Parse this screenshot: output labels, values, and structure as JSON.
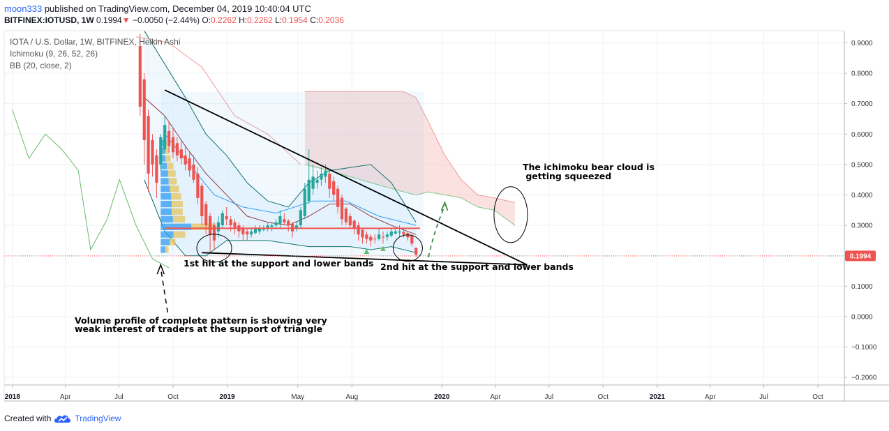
{
  "header": {
    "user": "moon333",
    "published_text": " published on TradingView.com, December 04, 2019 10:40:04 UTC",
    "symbol": "BITFINEX:IOTUSD, 1W",
    "last_price": "0.1994",
    "change": "−0.0050 (−2.44%)",
    "o_label": "O:",
    "o_value": "0.2262",
    "h_label": "H:",
    "h_value": "0.2262",
    "l_label": "L:",
    "l_value": "0.1954",
    "c_label": "C:",
    "c_value": "0.2036"
  },
  "legend": {
    "line1": "IOTA / U.S. Dollar, 1W, BITFINEX, Heikin Ashi",
    "line2": "Ichimoku (9, 26, 52, 26)",
    "line3": "BB (20, close, 2)"
  },
  "annotations": {
    "first_hit": "1st hit at the support and lower bands",
    "second_hit": "2nd hit at the support and lower bands",
    "cloud_line1": "The ichimoku bear cloud is",
    "cloud_line2": " getting squeezed",
    "volume_line1": "Volume profile of complete pattern is showing very",
    "volume_line2": "weak interest of traders at the support of triangle"
  },
  "footer": {
    "created_with": "Created with",
    "brand": "TradingView"
  },
  "colors": {
    "up": "#26a69a",
    "down": "#ef5350",
    "price_line": "#ef5350",
    "bb": "#2196f3",
    "cloud_bear": "#f7c9c7",
    "tradingview_blue": "#2962ff"
  },
  "chart_data": {
    "type": "candlestick",
    "title": "IOTA / U.S. Dollar, 1W, BITFINEX, Heikin Ashi",
    "indicators": [
      "Ichimoku (9, 26, 52, 26)",
      "BB (20, close, 2)"
    ],
    "y_ticks": [
      "0.9000",
      "0.8000",
      "0.7000",
      "0.6000",
      "0.5000",
      "0.4000",
      "0.3000",
      "0.2000",
      "0.1000",
      "0.0000",
      "−0.1000",
      "−0.2000"
    ],
    "y_tick_values": [
      0.9,
      0.8,
      0.7,
      0.6,
      0.5,
      0.4,
      0.3,
      0.2,
      0.1,
      0.0,
      -0.1,
      -0.2
    ],
    "ylim": [
      -0.225,
      0.94
    ],
    "x_ticks": [
      "2018",
      "Apr",
      "Jul",
      "Oct",
      "2019",
      "May",
      "Aug",
      "2020",
      "Apr",
      "Jul",
      "Oct",
      "2021",
      "Apr",
      "Jul",
      "Oct"
    ],
    "x_tick_dates": [
      "2018-01-01",
      "2018-04-01",
      "2018-07-01",
      "2018-10-01",
      "2019-01-01",
      "2019-05-01",
      "2019-08-01",
      "2020-01-01",
      "2020-04-01",
      "2020-07-01",
      "2020-10-01",
      "2021-01-01",
      "2021-04-01",
      "2021-07-01",
      "2021-10-01"
    ],
    "bold_x_ticks": [
      "2018",
      "2019",
      "2020",
      "2021"
    ],
    "last_price_label": "0.1994",
    "last_price": 0.1994,
    "resistance_level": 0.29,
    "triangle": {
      "upper_start": {
        "date": "2018-09-17",
        "price": 0.745
      },
      "lower_start": {
        "date": "2018-11-19",
        "price": 0.21
      },
      "apex": {
        "date": "2020-05-25",
        "price": 0.17
      }
    },
    "candles": [
      {
        "date": "2018-08-06",
        "o": 0.89,
        "h": 0.93,
        "c": 0.69,
        "l": 0.66
      },
      {
        "date": "2018-08-13",
        "o": 0.78,
        "h": 0.8,
        "c": 0.58,
        "l": 0.5
      },
      {
        "date": "2018-08-20",
        "o": 0.66,
        "h": 0.68,
        "c": 0.47,
        "l": 0.41
      },
      {
        "date": "2018-08-27",
        "o": 0.58,
        "h": 0.6,
        "c": 0.5,
        "l": 0.46
      },
      {
        "date": "2018-09-03",
        "o": 0.53,
        "h": 0.55,
        "c": 0.44,
        "l": 0.39
      },
      {
        "date": "2018-09-10",
        "o": 0.5,
        "h": 0.6,
        "c": 0.59,
        "l": 0.48
      },
      {
        "date": "2018-09-17",
        "o": 0.55,
        "h": 0.66,
        "c": 0.63,
        "l": 0.54
      },
      {
        "date": "2018-09-24",
        "o": 0.61,
        "h": 0.64,
        "c": 0.56,
        "l": 0.54
      },
      {
        "date": "2018-10-01",
        "o": 0.59,
        "h": 0.62,
        "c": 0.54,
        "l": 0.52
      },
      {
        "date": "2018-10-08",
        "o": 0.57,
        "h": 0.59,
        "c": 0.53,
        "l": 0.51
      },
      {
        "date": "2018-10-15",
        "o": 0.55,
        "h": 0.58,
        "c": 0.52,
        "l": 0.5
      },
      {
        "date": "2018-10-22",
        "o": 0.53,
        "h": 0.56,
        "c": 0.5,
        "l": 0.48
      },
      {
        "date": "2018-10-29",
        "o": 0.52,
        "h": 0.54,
        "c": 0.48,
        "l": 0.46
      },
      {
        "date": "2018-11-05",
        "o": 0.5,
        "h": 0.53,
        "c": 0.45,
        "l": 0.44
      },
      {
        "date": "2018-11-12",
        "o": 0.47,
        "h": 0.49,
        "c": 0.39,
        "l": 0.37
      },
      {
        "date": "2018-11-19",
        "o": 0.43,
        "h": 0.44,
        "c": 0.33,
        "l": 0.3
      },
      {
        "date": "2018-11-26",
        "o": 0.37,
        "h": 0.38,
        "c": 0.3,
        "l": 0.27
      },
      {
        "date": "2018-12-03",
        "o": 0.33,
        "h": 0.34,
        "c": 0.27,
        "l": 0.21
      },
      {
        "date": "2018-12-10",
        "o": 0.3,
        "h": 0.31,
        "c": 0.25,
        "l": 0.22
      },
      {
        "date": "2018-12-17",
        "o": 0.28,
        "h": 0.33,
        "c": 0.31,
        "l": 0.26
      },
      {
        "date": "2018-12-24",
        "o": 0.3,
        "h": 0.35,
        "c": 0.34,
        "l": 0.29
      },
      {
        "date": "2018-12-31",
        "o": 0.33,
        "h": 0.36,
        "c": 0.32,
        "l": 0.3
      },
      {
        "date": "2019-01-07",
        "o": 0.32,
        "h": 0.33,
        "c": 0.3,
        "l": 0.28
      },
      {
        "date": "2019-01-14",
        "o": 0.31,
        "h": 0.32,
        "c": 0.29,
        "l": 0.27
      },
      {
        "date": "2019-01-21",
        "o": 0.3,
        "h": 0.31,
        "c": 0.28,
        "l": 0.26
      },
      {
        "date": "2019-01-28",
        "o": 0.29,
        "h": 0.3,
        "c": 0.27,
        "l": 0.25
      },
      {
        "date": "2019-02-04",
        "o": 0.28,
        "h": 0.29,
        "c": 0.27,
        "l": 0.25
      },
      {
        "date": "2019-02-11",
        "o": 0.27,
        "h": 0.29,
        "c": 0.28,
        "l": 0.26
      },
      {
        "date": "2019-02-18",
        "o": 0.275,
        "h": 0.3,
        "c": 0.29,
        "l": 0.27
      },
      {
        "date": "2019-02-25",
        "o": 0.28,
        "h": 0.3,
        "c": 0.29,
        "l": 0.27
      },
      {
        "date": "2019-03-04",
        "o": 0.285,
        "h": 0.3,
        "c": 0.29,
        "l": 0.28
      },
      {
        "date": "2019-03-11",
        "o": 0.29,
        "h": 0.31,
        "c": 0.3,
        "l": 0.28
      },
      {
        "date": "2019-03-18",
        "o": 0.295,
        "h": 0.31,
        "c": 0.3,
        "l": 0.28
      },
      {
        "date": "2019-03-25",
        "o": 0.3,
        "h": 0.32,
        "c": 0.31,
        "l": 0.29
      },
      {
        "date": "2019-04-01",
        "o": 0.305,
        "h": 0.35,
        "c": 0.33,
        "l": 0.29
      },
      {
        "date": "2019-04-08",
        "o": 0.32,
        "h": 0.34,
        "c": 0.31,
        "l": 0.3
      },
      {
        "date": "2019-04-15",
        "o": 0.315,
        "h": 0.32,
        "c": 0.3,
        "l": 0.28
      },
      {
        "date": "2019-04-22",
        "o": 0.305,
        "h": 0.31,
        "c": 0.28,
        "l": 0.26
      },
      {
        "date": "2019-04-29",
        "o": 0.29,
        "h": 0.31,
        "c": 0.3,
        "l": 0.28
      },
      {
        "date": "2019-05-06",
        "o": 0.3,
        "h": 0.36,
        "c": 0.35,
        "l": 0.29
      },
      {
        "date": "2019-05-13",
        "o": 0.33,
        "h": 0.44,
        "c": 0.42,
        "l": 0.32
      },
      {
        "date": "2019-05-20",
        "o": 0.38,
        "h": 0.55,
        "c": 0.45,
        "l": 0.37
      },
      {
        "date": "2019-05-27",
        "o": 0.42,
        "h": 0.5,
        "c": 0.46,
        "l": 0.4
      },
      {
        "date": "2019-06-03",
        "o": 0.44,
        "h": 0.48,
        "c": 0.45,
        "l": 0.42
      },
      {
        "date": "2019-06-10",
        "o": 0.45,
        "h": 0.49,
        "c": 0.47,
        "l": 0.43
      },
      {
        "date": "2019-06-17",
        "o": 0.46,
        "h": 0.5,
        "c": 0.48,
        "l": 0.44
      },
      {
        "date": "2019-06-24",
        "o": 0.47,
        "h": 0.48,
        "c": 0.42,
        "l": 0.39
      },
      {
        "date": "2019-07-01",
        "o": 0.445,
        "h": 0.46,
        "c": 0.4,
        "l": 0.38
      },
      {
        "date": "2019-07-08",
        "o": 0.42,
        "h": 0.43,
        "c": 0.36,
        "l": 0.34
      },
      {
        "date": "2019-07-15",
        "o": 0.39,
        "h": 0.4,
        "c": 0.32,
        "l": 0.3
      },
      {
        "date": "2019-07-22",
        "o": 0.355,
        "h": 0.36,
        "c": 0.31,
        "l": 0.3
      },
      {
        "date": "2019-07-29",
        "o": 0.33,
        "h": 0.34,
        "c": 0.3,
        "l": 0.29
      },
      {
        "date": "2019-08-05",
        "o": 0.315,
        "h": 0.32,
        "c": 0.29,
        "l": 0.27
      },
      {
        "date": "2019-08-12",
        "o": 0.3,
        "h": 0.31,
        "c": 0.27,
        "l": 0.25
      },
      {
        "date": "2019-08-19",
        "o": 0.285,
        "h": 0.29,
        "c": 0.26,
        "l": 0.24
      },
      {
        "date": "2019-08-26",
        "o": 0.27,
        "h": 0.28,
        "c": 0.255,
        "l": 0.24
      },
      {
        "date": "2019-09-02",
        "o": 0.262,
        "h": 0.27,
        "c": 0.25,
        "l": 0.23
      },
      {
        "date": "2019-09-09",
        "o": 0.256,
        "h": 0.27,
        "c": 0.255,
        "l": 0.24
      },
      {
        "date": "2019-09-16",
        "o": 0.255,
        "h": 0.29,
        "c": 0.27,
        "l": 0.25
      },
      {
        "date": "2019-09-23",
        "o": 0.262,
        "h": 0.28,
        "c": 0.26,
        "l": 0.24
      },
      {
        "date": "2019-09-30",
        "o": 0.262,
        "h": 0.28,
        "c": 0.27,
        "l": 0.25
      },
      {
        "date": "2019-10-07",
        "o": 0.266,
        "h": 0.29,
        "c": 0.28,
        "l": 0.26
      },
      {
        "date": "2019-10-14",
        "o": 0.273,
        "h": 0.29,
        "c": 0.28,
        "l": 0.27
      },
      {
        "date": "2019-10-21",
        "o": 0.276,
        "h": 0.3,
        "c": 0.28,
        "l": 0.26
      },
      {
        "date": "2019-10-28",
        "o": 0.278,
        "h": 0.29,
        "c": 0.27,
        "l": 0.26
      },
      {
        "date": "2019-11-04",
        "o": 0.274,
        "h": 0.28,
        "c": 0.26,
        "l": 0.25
      },
      {
        "date": "2019-11-11",
        "o": 0.267,
        "h": 0.27,
        "c": 0.24,
        "l": 0.23
      },
      {
        "date": "2019-11-18",
        "o": 0.2262,
        "h": 0.2262,
        "c": 0.2036,
        "l": 0.1954
      }
    ],
    "volume_profile": {
      "up_color": "#2196f3",
      "down_color": "#f0c44a",
      "rows": [
        {
          "price": 0.57,
          "up": 0.1,
          "down": 0.12
        },
        {
          "price": 0.545,
          "up": 0.14,
          "down": 0.18
        },
        {
          "price": 0.52,
          "up": 0.16,
          "down": 0.2
        },
        {
          "price": 0.495,
          "up": 0.2,
          "down": 0.26
        },
        {
          "price": 0.47,
          "up": 0.24,
          "down": 0.3
        },
        {
          "price": 0.445,
          "up": 0.26,
          "down": 0.32
        },
        {
          "price": 0.42,
          "up": 0.3,
          "down": 0.36
        },
        {
          "price": 0.395,
          "up": 0.34,
          "down": 0.4
        },
        {
          "price": 0.37,
          "up": 0.36,
          "down": 0.44
        },
        {
          "price": 0.345,
          "up": 0.36,
          "down": 0.44
        },
        {
          "price": 0.32,
          "up": 0.4,
          "down": 0.48
        },
        {
          "price": 0.295,
          "up": 1.0,
          "down": 0.95
        },
        {
          "price": 0.27,
          "up": 0.42,
          "down": 0.46
        },
        {
          "price": 0.245,
          "up": 0.3,
          "down": 0.22
        },
        {
          "price": 0.22,
          "up": 0.16,
          "down": 0.12
        }
      ]
    },
    "ichimoku_cloud": [
      {
        "date": "2019-05-13",
        "top": 0.74,
        "bottom": 0.5
      },
      {
        "date": "2019-06-24",
        "top": 0.74,
        "bottom": 0.48
      },
      {
        "date": "2019-09-02",
        "top": 0.74,
        "bottom": 0.44
      },
      {
        "date": "2019-10-28",
        "top": 0.74,
        "bottom": 0.41
      },
      {
        "date": "2019-11-18",
        "top": 0.72,
        "bottom": 0.4
      },
      {
        "date": "2019-12-09",
        "top": 0.64,
        "bottom": 0.41
      },
      {
        "date": "2020-01-06",
        "top": 0.53,
        "bottom": 0.4
      },
      {
        "date": "2020-02-03",
        "top": 0.45,
        "bottom": 0.39
      },
      {
        "date": "2020-03-02",
        "top": 0.4,
        "bottom": 0.36
      },
      {
        "date": "2020-03-30",
        "top": 0.39,
        "bottom": 0.35
      },
      {
        "date": "2020-05-04",
        "top": 0.375,
        "bottom": 0.3
      }
    ],
    "ichimoku_lines": {
      "lagging_span": [
        {
          "date": "2018-01-01",
          "v": 0.68
        },
        {
          "date": "2018-01-29",
          "v": 0.52
        },
        {
          "date": "2018-02-26",
          "v": 0.6
        },
        {
          "date": "2018-03-26",
          "v": 0.55
        },
        {
          "date": "2018-04-23",
          "v": 0.48
        },
        {
          "date": "2018-05-14",
          "v": 0.22
        },
        {
          "date": "2018-06-11",
          "v": 0.32
        },
        {
          "date": "2018-07-02",
          "v": 0.45
        },
        {
          "date": "2018-07-30",
          "v": 0.3
        },
        {
          "date": "2018-08-27",
          "v": 0.19
        },
        {
          "date": "2018-09-24",
          "v": 0.16
        }
      ],
      "cloud_upper_hist": [
        {
          "date": "2018-07-30",
          "v": 0.92
        },
        {
          "date": "2018-09-24",
          "v": 0.9
        },
        {
          "date": "2018-11-19",
          "v": 0.82
        },
        {
          "date": "2019-01-14",
          "v": 0.66
        },
        {
          "date": "2019-03-11",
          "v": 0.6
        },
        {
          "date": "2019-05-06",
          "v": 0.5
        }
      ],
      "kijun": [
        {
          "date": "2018-09-17",
          "v": 0.6
        },
        {
          "date": "2018-10-29",
          "v": 0.5
        },
        {
          "date": "2018-12-10",
          "v": 0.4
        },
        {
          "date": "2019-01-28",
          "v": 0.36
        },
        {
          "date": "2019-03-25",
          "v": 0.34
        },
        {
          "date": "2019-05-27",
          "v": 0.38
        },
        {
          "date": "2019-07-22",
          "v": 0.38
        },
        {
          "date": "2019-09-16",
          "v": 0.33
        },
        {
          "date": "2019-11-18",
          "v": 0.3
        }
      ]
    },
    "bollinger_bands": {
      "upper": [
        {
          "date": "2018-08-13",
          "v": 0.94
        },
        {
          "date": "2018-09-17",
          "v": 0.83
        },
        {
          "date": "2018-10-22",
          "v": 0.72
        },
        {
          "date": "2018-11-26",
          "v": 0.6
        },
        {
          "date": "2018-12-31",
          "v": 0.53
        },
        {
          "date": "2019-02-04",
          "v": 0.44
        },
        {
          "date": "2019-03-11",
          "v": 0.38
        },
        {
          "date": "2019-04-15",
          "v": 0.36
        },
        {
          "date": "2019-05-20",
          "v": 0.44
        },
        {
          "date": "2019-06-24",
          "v": 0.48
        },
        {
          "date": "2019-07-29",
          "v": 0.49
        },
        {
          "date": "2019-09-02",
          "v": 0.5
        },
        {
          "date": "2019-10-07",
          "v": 0.44
        },
        {
          "date": "2019-11-18",
          "v": 0.31
        }
      ],
      "middle": [
        {
          "date": "2018-08-13",
          "v": 0.72
        },
        {
          "date": "2018-09-17",
          "v": 0.66
        },
        {
          "date": "2018-10-22",
          "v": 0.56
        },
        {
          "date": "2018-11-26",
          "v": 0.47
        },
        {
          "date": "2018-12-31",
          "v": 0.4
        },
        {
          "date": "2019-02-04",
          "v": 0.33
        },
        {
          "date": "2019-03-11",
          "v": 0.31
        },
        {
          "date": "2019-04-15",
          "v": 0.3
        },
        {
          "date": "2019-05-20",
          "v": 0.33
        },
        {
          "date": "2019-06-24",
          "v": 0.37
        },
        {
          "date": "2019-07-29",
          "v": 0.37
        },
        {
          "date": "2019-09-02",
          "v": 0.33
        },
        {
          "date": "2019-10-07",
          "v": 0.3
        },
        {
          "date": "2019-11-18",
          "v": 0.27
        }
      ],
      "lower": [
        {
          "date": "2018-08-13",
          "v": 0.45
        },
        {
          "date": "2018-09-17",
          "v": 0.28
        },
        {
          "date": "2018-10-22",
          "v": 0.2
        },
        {
          "date": "2018-11-26",
          "v": 0.2
        },
        {
          "date": "2018-12-31",
          "v": 0.25
        },
        {
          "date": "2019-02-04",
          "v": 0.25
        },
        {
          "date": "2019-03-11",
          "v": 0.25
        },
        {
          "date": "2019-04-15",
          "v": 0.24
        },
        {
          "date": "2019-05-20",
          "v": 0.23
        },
        {
          "date": "2019-06-24",
          "v": 0.23
        },
        {
          "date": "2019-07-29",
          "v": 0.23
        },
        {
          "date": "2019-09-02",
          "v": 0.22
        },
        {
          "date": "2019-10-07",
          "v": 0.23
        },
        {
          "date": "2019-11-18",
          "v": 0.21
        }
      ]
    }
  }
}
